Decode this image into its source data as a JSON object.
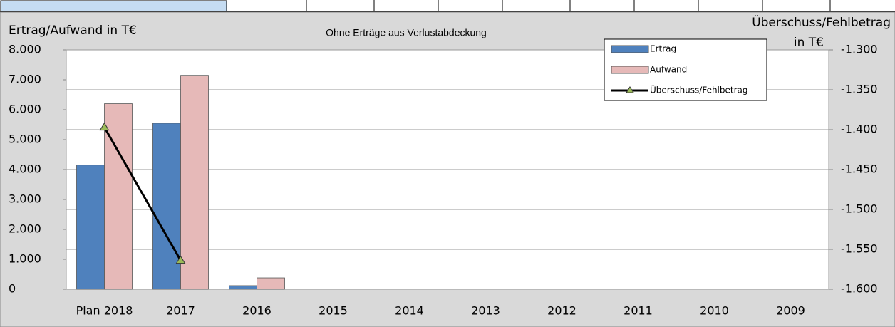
{
  "chart_data": {
    "type": "bar_line",
    "title": "Ohne Erträge  aus Verlustabdeckung",
    "ylabel": "Ertrag/Aufwand in T€",
    "y2label": [
      "Überschuss/Fehlbetrag",
      "in T€"
    ],
    "categories": [
      "Plan 2018",
      "2017",
      "2016",
      "2015",
      "2014",
      "2013",
      "2012",
      "2011",
      "2010",
      "2009"
    ],
    "series": [
      {
        "name": "Ertrag",
        "type": "bar",
        "color": "#4f81bd",
        "values": [
          4150,
          5550,
          120,
          null,
          null,
          null,
          null,
          null,
          null,
          null
        ]
      },
      {
        "name": "Aufwand",
        "type": "bar",
        "color": "#e6b9b8",
        "values": [
          6200,
          7150,
          380,
          null,
          null,
          null,
          null,
          null,
          null,
          null
        ]
      },
      {
        "name": "Überschuss/Fehlbetrag",
        "type": "line",
        "axis": "y2",
        "color": "#000000",
        "marker_color": "#9bbb59",
        "values": [
          -1397,
          -1564,
          null,
          null,
          null,
          null,
          null,
          null,
          null,
          null
        ]
      }
    ],
    "ylim": [
      0,
      8000
    ],
    "yticks": [
      0,
      {
        "value": 1000,
        "label": "1.000"
      },
      {
        "value": 2000,
        "label": "2.000"
      },
      {
        "value": 3000,
        "label": "3.000"
      },
      {
        "value": 4000,
        "label": "4.000"
      },
      {
        "value": 5000,
        "label": "5.000"
      },
      {
        "value": 6000,
        "label": "6.000"
      },
      {
        "value": 7000,
        "label": "7.000"
      },
      {
        "value": 8000,
        "label": "8.000"
      }
    ],
    "y2lim": [
      -1600,
      -1300
    ],
    "y2ticks": [
      {
        "value": -1600,
        "label": "-1.600"
      },
      {
        "value": -1550,
        "label": "-1.550"
      },
      {
        "value": -1500,
        "label": "-1.500"
      },
      {
        "value": -1450,
        "label": "-1.450"
      },
      {
        "value": -1400,
        "label": "-1.400"
      },
      {
        "value": -1350,
        "label": "-1.350"
      },
      {
        "value": -1300,
        "label": "-1.300"
      }
    ],
    "grid": "y2",
    "legend": "top-right"
  }
}
